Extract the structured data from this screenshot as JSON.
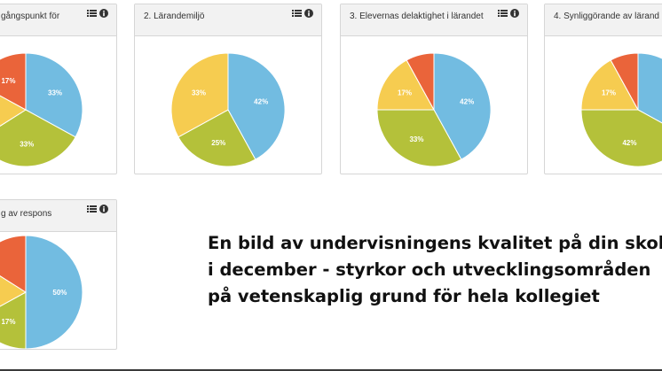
{
  "colors": {
    "blue": "#72bce1",
    "green": "#b4c13a",
    "yellow": "#f6cc50",
    "red": "#ea643a"
  },
  "panels": [
    {
      "title": "gångspunkt för",
      "icons": [
        "list-icon",
        "info-icon"
      ],
      "slices": [
        {
          "value": 33,
          "label": "33%",
          "color": "blue"
        },
        {
          "value": 33,
          "label": "33%",
          "color": "green"
        },
        {
          "value": 17,
          "label": "",
          "color": "yellow"
        },
        {
          "value": 17,
          "label": "17%",
          "color": "red"
        }
      ]
    },
    {
      "title": "2. Lärandemiljö",
      "icons": [
        "list-icon",
        "info-icon"
      ],
      "slices": [
        {
          "value": 42,
          "label": "42%",
          "color": "blue"
        },
        {
          "value": 25,
          "label": "25%",
          "color": "green"
        },
        {
          "value": 33,
          "label": "33%",
          "color": "yellow"
        }
      ]
    },
    {
      "title": "3. Elevernas delaktighet i lärandet",
      "icons": [
        "list-icon",
        "info-icon"
      ],
      "slices": [
        {
          "value": 42,
          "label": "42%",
          "color": "blue"
        },
        {
          "value": 33,
          "label": "33%",
          "color": "green"
        },
        {
          "value": 17,
          "label": "17%",
          "color": "yellow"
        },
        {
          "value": 8,
          "label": "",
          "color": "red"
        }
      ]
    },
    {
      "title": "4. Synliggörande av lärand",
      "icons": [
        "list-icon",
        "info-icon"
      ],
      "slices": [
        {
          "value": 33,
          "label": "33",
          "color": "blue"
        },
        {
          "value": 42,
          "label": "42%",
          "color": "green"
        },
        {
          "value": 17,
          "label": "17%",
          "color": "yellow"
        },
        {
          "value": 8,
          "label": "",
          "color": "red"
        }
      ]
    },
    {
      "title": "g av respons",
      "icons": [
        "list-icon",
        "info-icon"
      ],
      "slices": [
        {
          "value": 50,
          "label": "50%",
          "color": "blue"
        },
        {
          "value": 17,
          "label": "17%",
          "color": "green"
        },
        {
          "value": 17,
          "label": "%",
          "color": "yellow"
        },
        {
          "value": 16,
          "label": "",
          "color": "red"
        }
      ]
    }
  ],
  "headline": {
    "line1": "En bild av undervisningens kvalitet på din skola",
    "line2": "i december - styrkor och utvecklingsområden",
    "line3": "på vetenskaplig grund för hela kollegiet"
  }
}
